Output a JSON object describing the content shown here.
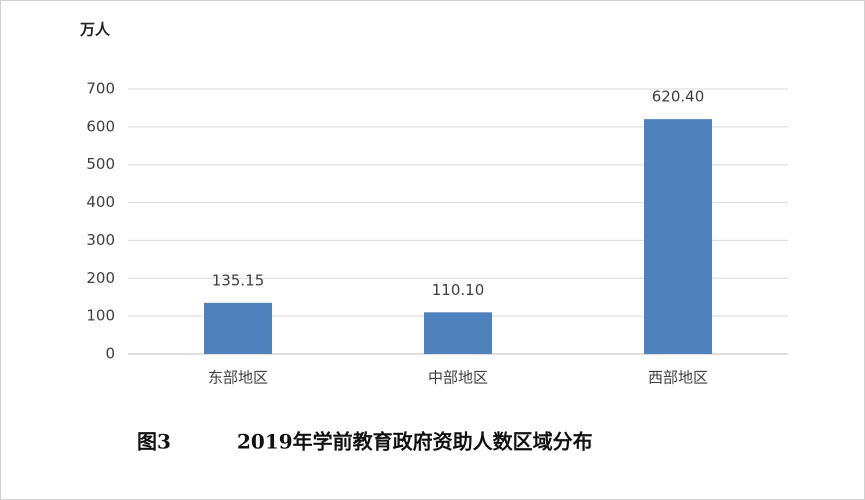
{
  "chart_data": {
    "type": "bar",
    "y_label": "万人",
    "figure_label": "图3",
    "title": "2019年学前教育政府资助人数区域分布",
    "categories": [
      "东部地区",
      "中部地区",
      "西部地区"
    ],
    "values": [
      135.15,
      110.1,
      620.4
    ],
    "value_labels": [
      "135.15",
      "110.10",
      "620.40"
    ],
    "color": "#4f81bd",
    "ylim": [
      0,
      700
    ],
    "yticks": [
      0,
      100,
      200,
      300,
      400,
      500,
      600,
      700
    ],
    "grid": true
  }
}
